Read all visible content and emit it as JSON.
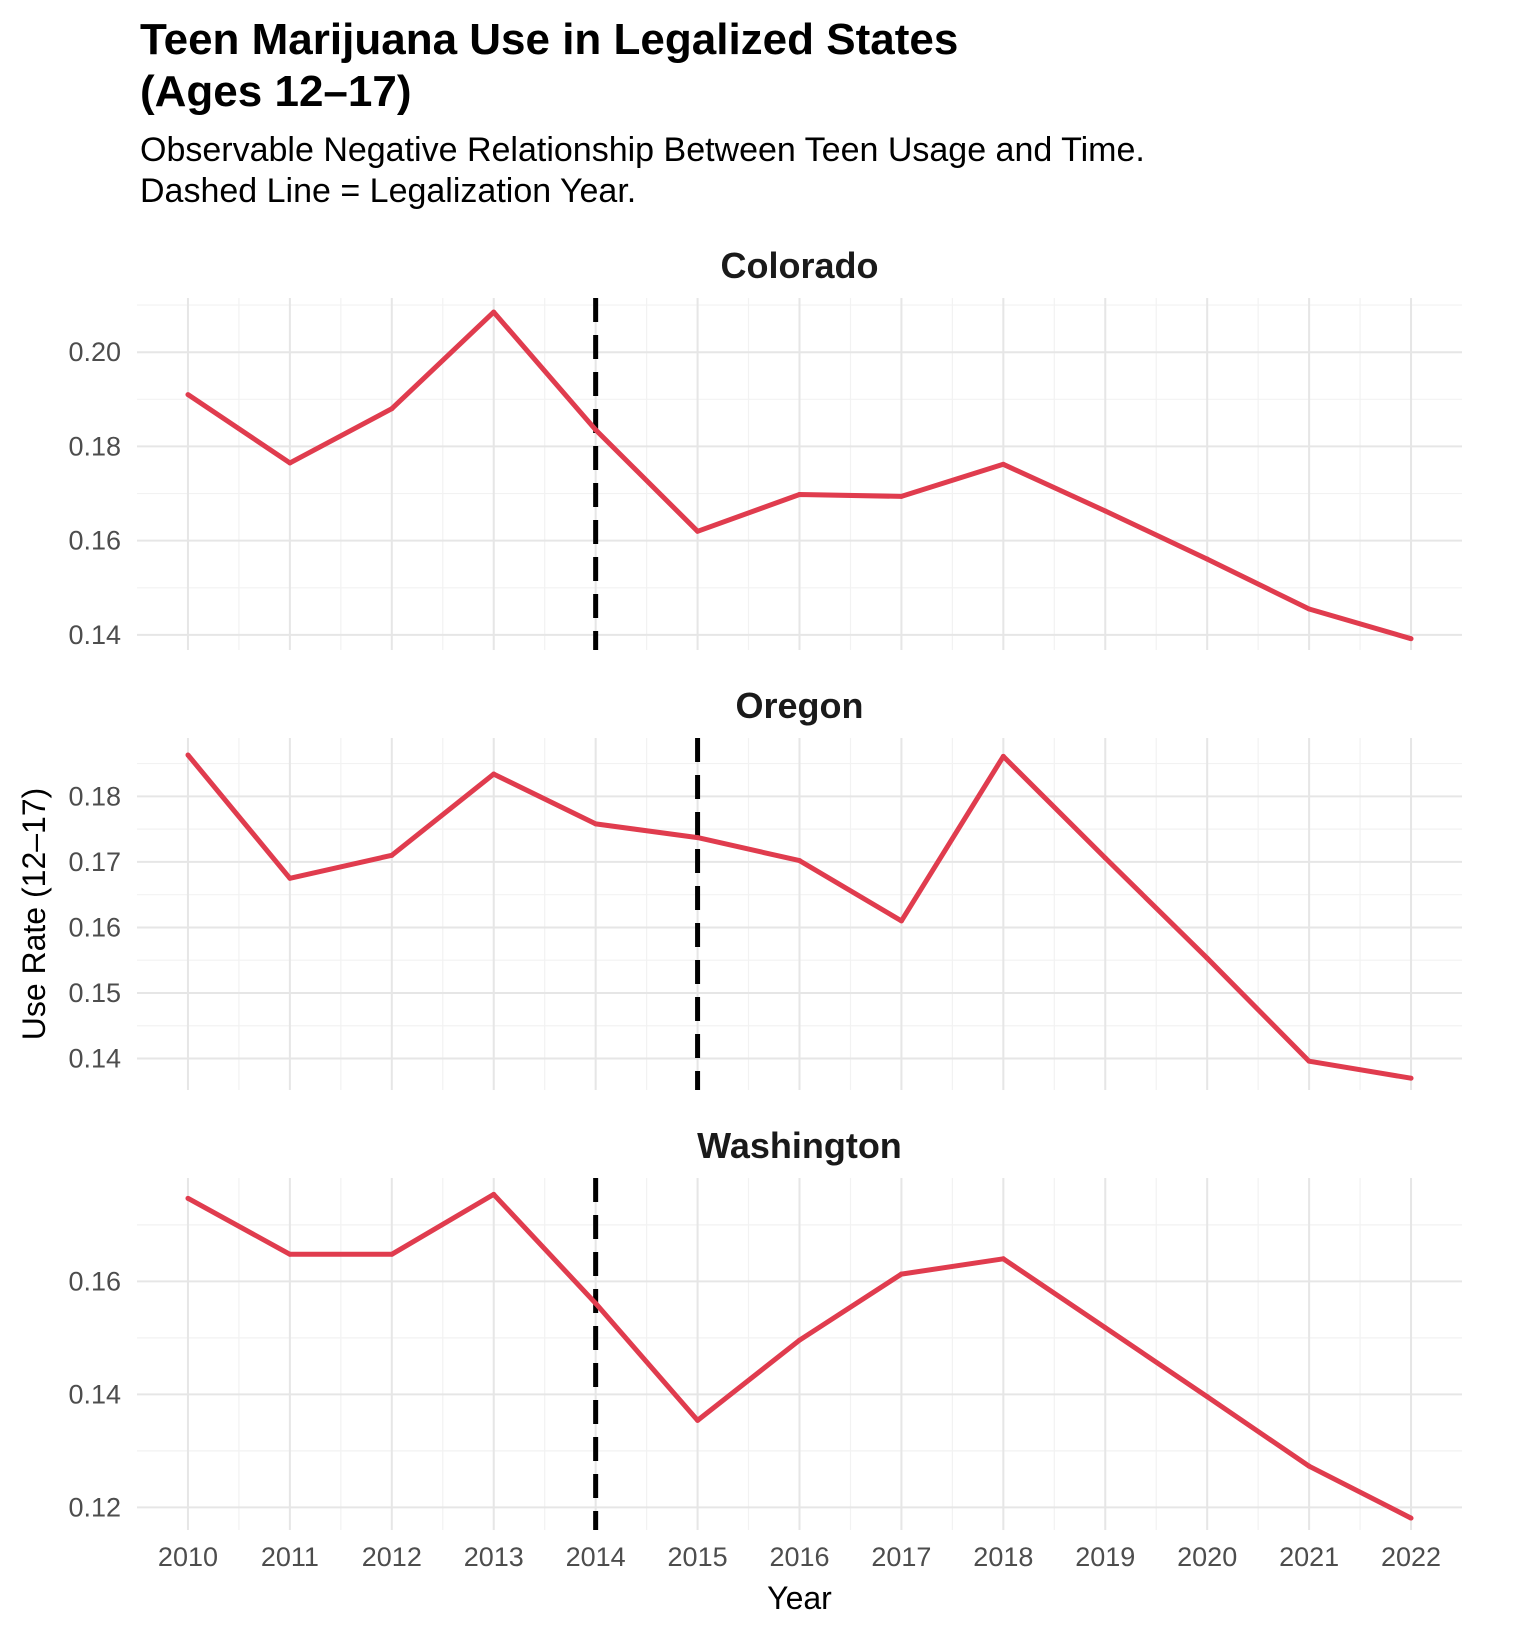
{
  "chart_data": {
    "type": "line",
    "title": "Teen Marijuana Use in Legalized States\n(Ages 12–17)",
    "subtitle": "Observable Negative Relationship Between Teen Usage and Time.\nDashed Line = Legalization Year.",
    "xlabel": "Year",
    "ylabel": "Use Rate (12–17)",
    "x": [
      2010,
      2011,
      2012,
      2013,
      2014,
      2015,
      2016,
      2017,
      2018,
      2019,
      2020,
      2021,
      2022
    ],
    "xlim": [
      2009.5,
      2022.5
    ],
    "grid": true,
    "line_color": "#E03C4E",
    "legalization_line_color": "#000000",
    "panels": [
      {
        "name": "Colorado",
        "values": [
          0.191,
          0.1765,
          0.188,
          0.2085,
          0.1835,
          0.162,
          0.1698,
          0.1694,
          0.1762,
          0.1663,
          0.1561,
          0.1455,
          0.1392
        ],
        "legalization_year": 2014,
        "ylim": [
          0.1368,
          0.2115
        ],
        "yticks": [
          "0.14",
          "0.16",
          "0.18",
          "0.20"
        ]
      },
      {
        "name": "Oregon",
        "values": [
          0.1863,
          0.1675,
          0.171,
          0.1834,
          0.1758,
          0.1737,
          0.1702,
          0.161,
          0.1861,
          0.1706,
          0.1553,
          0.1396,
          0.137
        ],
        "legalization_year": 2015,
        "ylim": [
          0.1352,
          0.1889
        ],
        "yticks": [
          "0.14",
          "0.15",
          "0.16",
          "0.17",
          "0.18"
        ]
      },
      {
        "name": "Washington",
        "values": [
          0.1747,
          0.1648,
          0.1648,
          0.1754,
          0.1561,
          0.1354,
          0.1496,
          0.1613,
          0.164,
          0.1518,
          0.1396,
          0.1273,
          0.1181
        ],
        "legalization_year": 2014,
        "ylim": [
          0.116,
          0.1783
        ],
        "yticks": [
          "0.12",
          "0.14",
          "0.16"
        ]
      }
    ]
  }
}
